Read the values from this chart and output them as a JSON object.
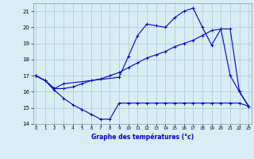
{
  "background_color": "#d8eef5",
  "grid_color": "#b0cdd8",
  "line_color": "#0000cc",
  "xlabel": "Graphe des températures (°c)",
  "xlabel_color": "#0000cc",
  "xlim": [
    0,
    23
  ],
  "ylim": [
    14,
    21.5
  ],
  "yticks": [
    14,
    15,
    16,
    17,
    18,
    19,
    20,
    21
  ],
  "xticks": [
    0,
    1,
    2,
    3,
    4,
    5,
    6,
    7,
    8,
    9,
    10,
    11,
    12,
    13,
    14,
    15,
    16,
    17,
    18,
    19,
    20,
    21,
    22,
    23
  ],
  "series1_x": [
    0,
    1,
    2,
    3,
    4,
    5,
    6,
    7,
    8,
    9,
    10,
    11,
    12,
    13,
    14,
    15,
    16,
    17,
    18,
    19,
    20,
    21,
    22,
    23
  ],
  "series1_y": [
    17.0,
    16.7,
    16.1,
    15.6,
    15.2,
    14.9,
    14.6,
    14.3,
    14.3,
    15.3,
    15.3,
    15.3,
    15.3,
    15.3,
    15.3,
    15.3,
    15.3,
    15.3,
    15.3,
    15.3,
    15.3,
    15.3,
    15.3,
    15.1
  ],
  "series2_x": [
    0,
    1,
    2,
    3,
    4,
    5,
    6,
    7,
    8,
    9,
    10,
    11,
    12,
    13,
    14,
    15,
    16,
    17,
    18,
    19,
    20,
    21,
    22,
    23
  ],
  "series2_y": [
    17.0,
    16.7,
    16.2,
    16.2,
    16.3,
    16.5,
    16.7,
    16.8,
    17.0,
    17.2,
    17.5,
    17.8,
    18.1,
    18.3,
    18.5,
    18.8,
    19.0,
    19.2,
    19.5,
    19.8,
    19.9,
    19.9,
    16.0,
    15.1
  ],
  "series3_x": [
    0,
    1,
    2,
    3,
    9,
    10,
    11,
    12,
    13,
    14,
    15,
    16,
    17,
    18,
    19,
    20,
    21,
    22,
    23
  ],
  "series3_y": [
    17.0,
    16.7,
    16.2,
    16.5,
    16.9,
    18.2,
    19.5,
    20.2,
    20.1,
    20.0,
    20.6,
    21.0,
    21.2,
    20.0,
    18.9,
    19.9,
    17.0,
    16.0,
    15.1
  ]
}
